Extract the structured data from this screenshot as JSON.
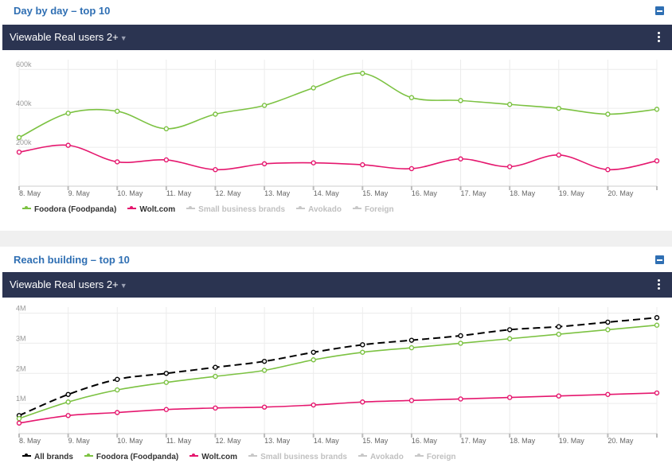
{
  "panels": [
    {
      "title": "Day by day – top 10",
      "metric": "Viewable Real users 2+",
      "legend": [
        {
          "label": "Foodora (Foodpanda)",
          "color": "#7cc242",
          "active": true
        },
        {
          "label": "Wolt.com",
          "color": "#e5176e",
          "active": true
        },
        {
          "label": "Small business brands",
          "color": "#c8c8c8",
          "active": false
        },
        {
          "label": "Avokado",
          "color": "#c8c8c8",
          "active": false
        },
        {
          "label": "Foreign",
          "color": "#c8c8c8",
          "active": false
        }
      ]
    },
    {
      "title": "Reach building – top 10",
      "metric": "Viewable Real users 2+",
      "legend": [
        {
          "label": "All brands",
          "color": "#000000",
          "active": true
        },
        {
          "label": "Foodora (Foodpanda)",
          "color": "#7cc242",
          "active": true
        },
        {
          "label": "Wolt.com",
          "color": "#e5176e",
          "active": true
        },
        {
          "label": "Small business brands",
          "color": "#c8c8c8",
          "active": false
        },
        {
          "label": "Avokado",
          "color": "#c8c8c8",
          "active": false
        },
        {
          "label": "Foreign",
          "color": "#c8c8c8",
          "active": false
        }
      ]
    }
  ],
  "chart_data": [
    {
      "type": "line",
      "x": [
        "8. May",
        "9. May",
        "10. May",
        "11. May",
        "12. May",
        "13. May",
        "14. May",
        "15. May",
        "16. May",
        "17. May",
        "18. May",
        "19. May",
        "20. May",
        ""
      ],
      "yticks": [
        "200k",
        "400k",
        "600k"
      ],
      "ylim": [
        0,
        650000
      ],
      "series": [
        {
          "name": "Foodora (Foodpanda)",
          "color": "#7cc242",
          "dashed": false,
          "values": [
            250000,
            375000,
            385000,
            295000,
            370000,
            415000,
            505000,
            580000,
            455000,
            440000,
            420000,
            400000,
            370000,
            395000
          ]
        },
        {
          "name": "Wolt.com",
          "color": "#e5176e",
          "dashed": false,
          "values": [
            175000,
            210000,
            125000,
            135000,
            85000,
            115000,
            120000,
            110000,
            90000,
            140000,
            100000,
            160000,
            85000,
            130000
          ]
        }
      ]
    },
    {
      "type": "line",
      "x": [
        "8. May",
        "9. May",
        "10. May",
        "11. May",
        "12. May",
        "13. May",
        "14. May",
        "15. May",
        "16. May",
        "17. May",
        "18. May",
        "19. May",
        "20. May",
        ""
      ],
      "yticks": [
        "1M",
        "2M",
        "3M",
        "4M"
      ],
      "ylim": [
        0,
        4200000
      ],
      "series": [
        {
          "name": "All brands",
          "color": "#000000",
          "dashed": true,
          "values": [
            600000,
            1300000,
            1800000,
            2000000,
            2200000,
            2400000,
            2700000,
            2950000,
            3100000,
            3250000,
            3450000,
            3550000,
            3700000,
            3850000
          ]
        },
        {
          "name": "Foodora (Foodpanda)",
          "color": "#7cc242",
          "dashed": false,
          "values": [
            500000,
            1050000,
            1450000,
            1700000,
            1900000,
            2100000,
            2450000,
            2700000,
            2850000,
            3000000,
            3150000,
            3300000,
            3450000,
            3600000
          ]
        },
        {
          "name": "Wolt.com",
          "color": "#e5176e",
          "dashed": false,
          "values": [
            350000,
            600000,
            700000,
            800000,
            850000,
            880000,
            950000,
            1050000,
            1100000,
            1150000,
            1200000,
            1250000,
            1300000,
            1350000
          ]
        }
      ]
    }
  ]
}
